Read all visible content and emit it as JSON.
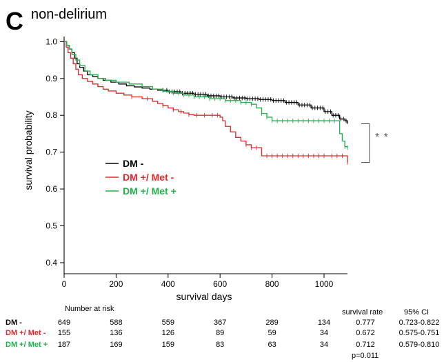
{
  "panel": {
    "letter": "C",
    "title": "non-delirium"
  },
  "chart_data": {
    "type": "line",
    "step": true,
    "title": "",
    "xlabel": "survival days",
    "ylabel": "survival probability",
    "xlim": [
      0,
      1100
    ],
    "ylim": [
      0.37,
      1.01
    ],
    "x_ticks": [
      0,
      200,
      400,
      600,
      800,
      1000
    ],
    "y_ticks": [
      0.4,
      0.5,
      0.6,
      0.7,
      0.8,
      0.9,
      1.0
    ],
    "y_tick_labels": [
      "0.4",
      "0.5",
      "0.6",
      "0.7",
      "0.8",
      "0.9",
      "1.0"
    ],
    "grid": false,
    "legend_position": "center-left",
    "series": [
      {
        "name": "DM -",
        "color": "#000000",
        "x": [
          0,
          10,
          20,
          30,
          40,
          50,
          60,
          75,
          90,
          110,
          130,
          150,
          180,
          210,
          240,
          270,
          300,
          330,
          360,
          400,
          450,
          500,
          550,
          600,
          650,
          700,
          750,
          800,
          850,
          900,
          950,
          1000,
          1030,
          1060,
          1080,
          1090
        ],
        "y": [
          1.0,
          0.99,
          0.98,
          0.97,
          0.955,
          0.94,
          0.93,
          0.92,
          0.91,
          0.905,
          0.9,
          0.895,
          0.89,
          0.885,
          0.88,
          0.877,
          0.874,
          0.871,
          0.868,
          0.864,
          0.86,
          0.857,
          0.853,
          0.85,
          0.847,
          0.845,
          0.843,
          0.84,
          0.835,
          0.828,
          0.82,
          0.81,
          0.8,
          0.79,
          0.785,
          0.777
        ],
        "censor_x": [
          380,
          395,
          405,
          415,
          425,
          435,
          445,
          455,
          465,
          475,
          485,
          495,
          505,
          515,
          525,
          535,
          545,
          555,
          565,
          575,
          585,
          595,
          605,
          615,
          625,
          635,
          645,
          655,
          665,
          675,
          685,
          695,
          705,
          715,
          725,
          735,
          745,
          755,
          765,
          775,
          785,
          795,
          805,
          815,
          825,
          835,
          845,
          855,
          865,
          875,
          885,
          895,
          905,
          915,
          925,
          935,
          945,
          955,
          965,
          975,
          985,
          995,
          1005,
          1015,
          1025,
          1035,
          1045,
          1055,
          1065,
          1075,
          1085
        ]
      },
      {
        "name": "DM +/ Met -",
        "color": "#e02a2a",
        "x": [
          0,
          8,
          15,
          25,
          35,
          45,
          55,
          70,
          90,
          110,
          130,
          150,
          170,
          200,
          230,
          260,
          300,
          340,
          360,
          380,
          400,
          420,
          440,
          460,
          480,
          500,
          560,
          600,
          610,
          620,
          640,
          660,
          680,
          700,
          720,
          760,
          1090
        ],
        "y": [
          1.0,
          0.985,
          0.97,
          0.955,
          0.94,
          0.925,
          0.91,
          0.9,
          0.892,
          0.885,
          0.878,
          0.871,
          0.866,
          0.86,
          0.855,
          0.85,
          0.845,
          0.838,
          0.832,
          0.826,
          0.82,
          0.815,
          0.81,
          0.806,
          0.802,
          0.8,
          0.8,
          0.795,
          0.785,
          0.77,
          0.755,
          0.74,
          0.73,
          0.72,
          0.712,
          0.69,
          0.672
        ],
        "censor_x": [
          260,
          320,
          380,
          420,
          450,
          480,
          510,
          540,
          570,
          590,
          700,
          720,
          740,
          780,
          800,
          820,
          840,
          860,
          880,
          900,
          920,
          940,
          960,
          980,
          1000,
          1030,
          1050,
          1070,
          1090
        ]
      },
      {
        "name": "DM +/ Met +",
        "color": "#22b14c",
        "x": [
          0,
          10,
          20,
          30,
          45,
          60,
          80,
          100,
          130,
          160,
          200,
          250,
          300,
          340,
          380,
          420,
          460,
          500,
          560,
          620,
          680,
          720,
          740,
          760,
          780,
          800,
          1050,
          1060,
          1070,
          1080,
          1090
        ],
        "y": [
          1.0,
          0.99,
          0.98,
          0.965,
          0.95,
          0.935,
          0.92,
          0.91,
          0.9,
          0.895,
          0.89,
          0.885,
          0.878,
          0.871,
          0.865,
          0.86,
          0.855,
          0.85,
          0.845,
          0.84,
          0.835,
          0.83,
          0.82,
          0.805,
          0.795,
          0.785,
          0.785,
          0.75,
          0.73,
          0.715,
          0.712
        ],
        "censor_x": [
          420,
          440,
          460,
          480,
          500,
          520,
          540,
          560,
          580,
          600,
          620,
          640,
          660,
          680,
          700,
          720,
          760,
          780,
          800,
          820,
          840,
          860,
          880,
          900,
          920,
          940,
          960,
          980,
          1000,
          1020,
          1040,
          1080,
          1090
        ]
      }
    ],
    "risk_table": {
      "title": "Number at risk",
      "times": [
        0,
        200,
        400,
        600,
        800,
        1000
      ],
      "rows": [
        {
          "group": "DM -",
          "color": "#000000",
          "values": [
            "649",
            "588",
            "559",
            "367",
            "289",
            "134"
          ],
          "rate": "0.777",
          "ci": "0.723-0.822"
        },
        {
          "group": "DM +/ Met -",
          "color": "#e02a2a",
          "values": [
            "155",
            "136",
            "126",
            "89",
            "59",
            "34"
          ],
          "rate": "0.672",
          "ci": "0.575-0.751"
        },
        {
          "group": "DM +/ Met +",
          "color": "#22b14c",
          "values": [
            "187",
            "169",
            "159",
            "83",
            "63",
            "34"
          ],
          "rate": "0.712",
          "ci": "0.579-0.810"
        }
      ],
      "rate_header": "survival rate",
      "ci_header": "95% CI",
      "p_value": "p=0.011"
    },
    "annotation": "* *"
  }
}
